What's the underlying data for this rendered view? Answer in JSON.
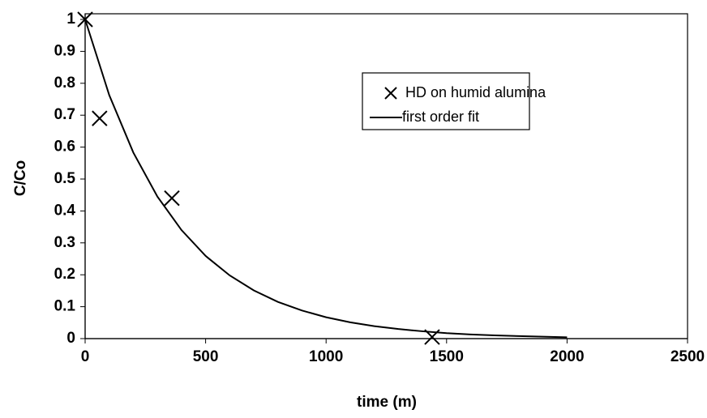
{
  "chart_data": {
    "type": "scatter",
    "xlabel": "time (m)",
    "ylabel": "C/Co",
    "xlim": [
      0,
      2500
    ],
    "xticks": [
      0,
      500,
      1000,
      1500,
      2000,
      2500
    ],
    "ylim": [
      0,
      1
    ],
    "yticks": [
      0,
      0.1,
      0.2,
      0.3,
      0.4,
      0.5,
      0.6,
      0.7,
      0.8,
      0.9,
      1
    ],
    "grid": false,
    "series": [
      {
        "name": "HD on humid alumina",
        "type": "scatter",
        "color": "#000000",
        "x": [
          0,
          60,
          360,
          1440
        ],
        "values": [
          1,
          0.69,
          0.44,
          0.005
        ]
      },
      {
        "name": "first order fit",
        "type": "line",
        "color": "#000000",
        "x": [
          0,
          100,
          200,
          300,
          400,
          500,
          600,
          700,
          800,
          900,
          1000,
          1100,
          1200,
          1300,
          1400,
          1500,
          1600,
          1700,
          1800,
          1900,
          2000
        ],
        "values": [
          1,
          0.763,
          0.583,
          0.445,
          0.34,
          0.259,
          0.198,
          0.151,
          0.115,
          0.088,
          0.067,
          0.051,
          0.039,
          0.03,
          0.023,
          0.017,
          0.013,
          0.01,
          0.008,
          0.006,
          0.004
        ]
      }
    ]
  }
}
